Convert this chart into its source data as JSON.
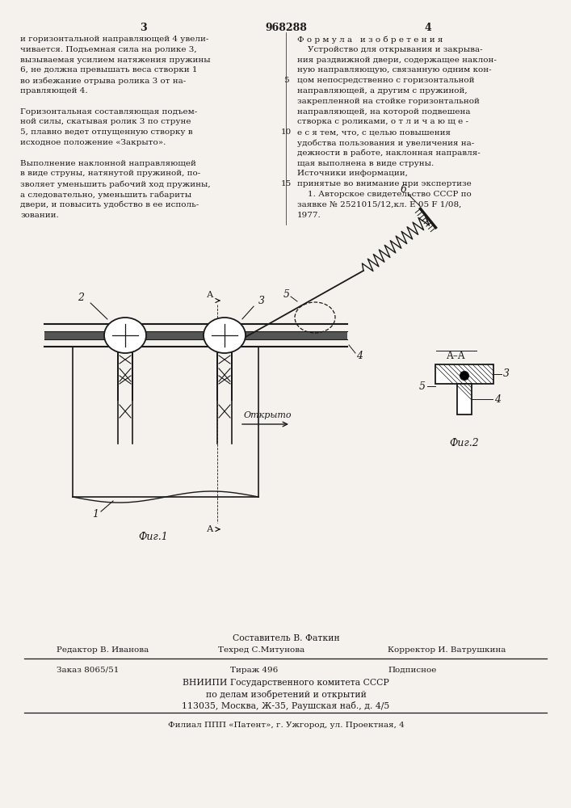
{
  "page_width": 7.07,
  "page_height": 10.0,
  "bg_color": "#f5f2ed",
  "text_color": "#1a1a1a",
  "patent_number": "968288",
  "col_left": "3",
  "col_right": "4",
  "left_text_lines": [
    "и горизонтальной направляющей 4 увели-",
    "чивается. Подъемная сила на ролике 3,",
    "вызываемая усилием натяжения пружины",
    "6, не должна превышать веса створки 1",
    "во избежание отрыва ролика 3 от на-",
    "правляющей 4.",
    "",
    "Горизонтальная составляющая подъем-",
    "ной силы, скатывая ролик 3 по струне",
    "5, плавно ведет отпущенную створку в",
    "исходное положение «Закрыто».",
    "",
    "Выполнение наклонной направляющей",
    "в виде струны, натянутой пружиной, по-",
    "зволяет уменьшить рабочий ход пружины,",
    "а следовательно, уменьшить габариты",
    "двери, и повысить удобство в ее исполь-",
    "зовании."
  ],
  "right_text_lines": [
    "Ф о р м у л а   и з о б р е т е н и я",
    "    Устройство для открывания и закрыва-",
    "ния раздвижной двери, содержащее наклон-",
    "ную направляющую, связанную одним кон-",
    "цом непосредственно с горизонтальной",
    "направляющей, а другим с пружиной,",
    "закрепленной на стойке горизонтальной",
    "направляющей, на которой подвешена",
    "створка с роликами, о т л и ч а ю щ е -",
    "е с я тем, что, с целью повышения",
    "удобства пользования и увеличения на-",
    "дежности в работе, наклонная направля-",
    "щая выполнена в виде струны.",
    "Источники информации,",
    "принятые во внимание при экспертизе",
    "    1. Авторское свидетельство СССР по",
    "заявке № 2521015/12,кл. Е 05 F 1/08,",
    "1977."
  ],
  "bottom_text": {
    "sostavitel": "Составитель В. Фаткин",
    "editor": "Редактор В. Иванова",
    "tehred": "Техред С.Митунова",
    "korrektor": "Корректор И. Ватрушкина",
    "zakaz": "Заказ 8065/51",
    "tirazh": "Тираж 496",
    "podpisnoe": "Подписное",
    "vnipi": "ВНИИПИ Государственного комитета СССР",
    "po_delam": "по делам изобретений и открытий",
    "address": "113035, Москва, Ж-35, Раушская наб., д. 4/5",
    "filial": "Филиал ППП «Патент», г. Ужгород, ул. Проектная, 4"
  }
}
